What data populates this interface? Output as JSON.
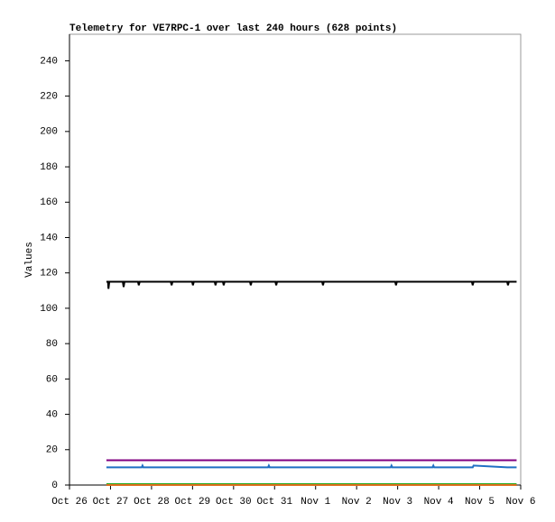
{
  "chart_data": {
    "type": "line",
    "title": "Telemetry for VE7RPC-1 over last 240 hours (628 points)",
    "y_label": "Values",
    "x": [
      0.9,
      0.94,
      0.95,
      0.97,
      1.3,
      1.32,
      1.34,
      1.67,
      1.69,
      1.71,
      1.76,
      1.78,
      1.8,
      2.47,
      2.49,
      2.51,
      2.99,
      3.01,
      3.03,
      3.54,
      3.56,
      3.58,
      3.74,
      3.76,
      3.78,
      4.4,
      4.42,
      4.44,
      4.84,
      4.86,
      4.88,
      5.02,
      5.04,
      5.06,
      6.16,
      6.18,
      6.2,
      7.83,
      7.85,
      7.87,
      7.94,
      7.96,
      7.98,
      8.85,
      8.87,
      8.89,
      9.81,
      9.83,
      9.85,
      10.67,
      10.69,
      10.71,
      10.9
    ],
    "series": [
      {
        "color": "#000000",
        "values": [
          115,
          115,
          111,
          115,
          115,
          112,
          115,
          115,
          113,
          115,
          115,
          115,
          115,
          115,
          113,
          115,
          115,
          113,
          115,
          115,
          113,
          115,
          115,
          113,
          115,
          115,
          113,
          115,
          115,
          115,
          115,
          115,
          113,
          115,
          115,
          113,
          115,
          115,
          115,
          115,
          115,
          113,
          115,
          115,
          115,
          115,
          115,
          113,
          115,
          115,
          113,
          115,
          115
        ]
      },
      {
        "color": "#800080",
        "values": [
          14,
          14,
          14,
          14,
          14,
          14,
          14,
          14,
          14,
          14,
          14,
          14,
          14,
          14,
          14,
          14,
          14,
          14,
          14,
          14,
          14,
          14,
          14,
          14,
          14,
          14,
          14,
          14,
          14,
          14,
          14,
          14,
          14,
          14,
          14,
          14,
          14,
          14,
          14,
          14,
          14,
          14,
          14,
          14,
          14,
          14,
          14,
          14,
          14,
          14,
          14,
          14,
          14
        ]
      },
      {
        "color": "#1f6fc4",
        "values": [
          10,
          10,
          10,
          10,
          10,
          10,
          10,
          10,
          10,
          10,
          10,
          11,
          10,
          10,
          10,
          10,
          10,
          10,
          10,
          10,
          10,
          10,
          10,
          10,
          10,
          10,
          10,
          10,
          10,
          11,
          10,
          10,
          10,
          10,
          10,
          10,
          10,
          10,
          11,
          10,
          10,
          10,
          10,
          10,
          11,
          10,
          10,
          10,
          11,
          10,
          10,
          10,
          10
        ]
      },
      {
        "color": "#22aa22",
        "values": [
          0.5,
          0.5,
          0.5,
          0.5,
          0.5,
          0.5,
          0.5,
          0.5,
          0.5,
          0.5,
          0.5,
          0.5,
          0.5,
          0.5,
          0.5,
          0.5,
          0.5,
          0.5,
          0.5,
          0.5,
          0.5,
          0.5,
          0.5,
          0.5,
          0.5,
          0.5,
          0.5,
          0.5,
          0.5,
          0.5,
          0.5,
          0.5,
          0.5,
          0.5,
          0.5,
          0.5,
          0.5,
          0.5,
          0.5,
          0.5,
          0.5,
          0.5,
          0.5,
          0.5,
          0.5,
          0.5,
          0.5,
          0.5,
          0.5,
          0.5,
          0.5,
          0.5,
          0.5
        ]
      },
      {
        "color": "#e07020",
        "values": [
          0,
          0,
          0,
          0,
          0,
          0,
          0,
          0,
          0,
          0,
          0,
          0,
          0,
          0,
          0,
          0,
          0,
          0,
          0,
          0,
          0,
          0,
          0,
          0,
          0,
          0,
          0,
          0,
          0,
          0,
          0,
          0,
          0,
          0,
          0,
          0,
          0,
          0,
          0,
          0,
          0,
          0,
          0,
          0,
          0,
          0,
          0,
          0,
          0,
          0,
          0,
          0,
          0
        ]
      }
    ],
    "xlim": [
      0,
      11
    ],
    "xticks": [
      {
        "value": 0,
        "label": "Oct 26"
      },
      {
        "value": 1,
        "label": "Oct 27"
      },
      {
        "value": 2,
        "label": "Oct 28"
      },
      {
        "value": 3,
        "label": "Oct 29"
      },
      {
        "value": 4,
        "label": "Oct 30"
      },
      {
        "value": 5,
        "label": "Oct 31"
      },
      {
        "value": 6,
        "label": "Nov 1"
      },
      {
        "value": 7,
        "label": "Nov 2"
      },
      {
        "value": 8,
        "label": "Nov 3"
      },
      {
        "value": 9,
        "label": "Nov 4"
      },
      {
        "value": 10,
        "label": "Nov 5"
      },
      {
        "value": 11,
        "label": "Nov 6"
      }
    ],
    "ylim": [
      0,
      255
    ],
    "yticks": [
      0,
      20,
      40,
      60,
      80,
      100,
      120,
      140,
      160,
      180,
      200,
      220,
      240
    ]
  }
}
